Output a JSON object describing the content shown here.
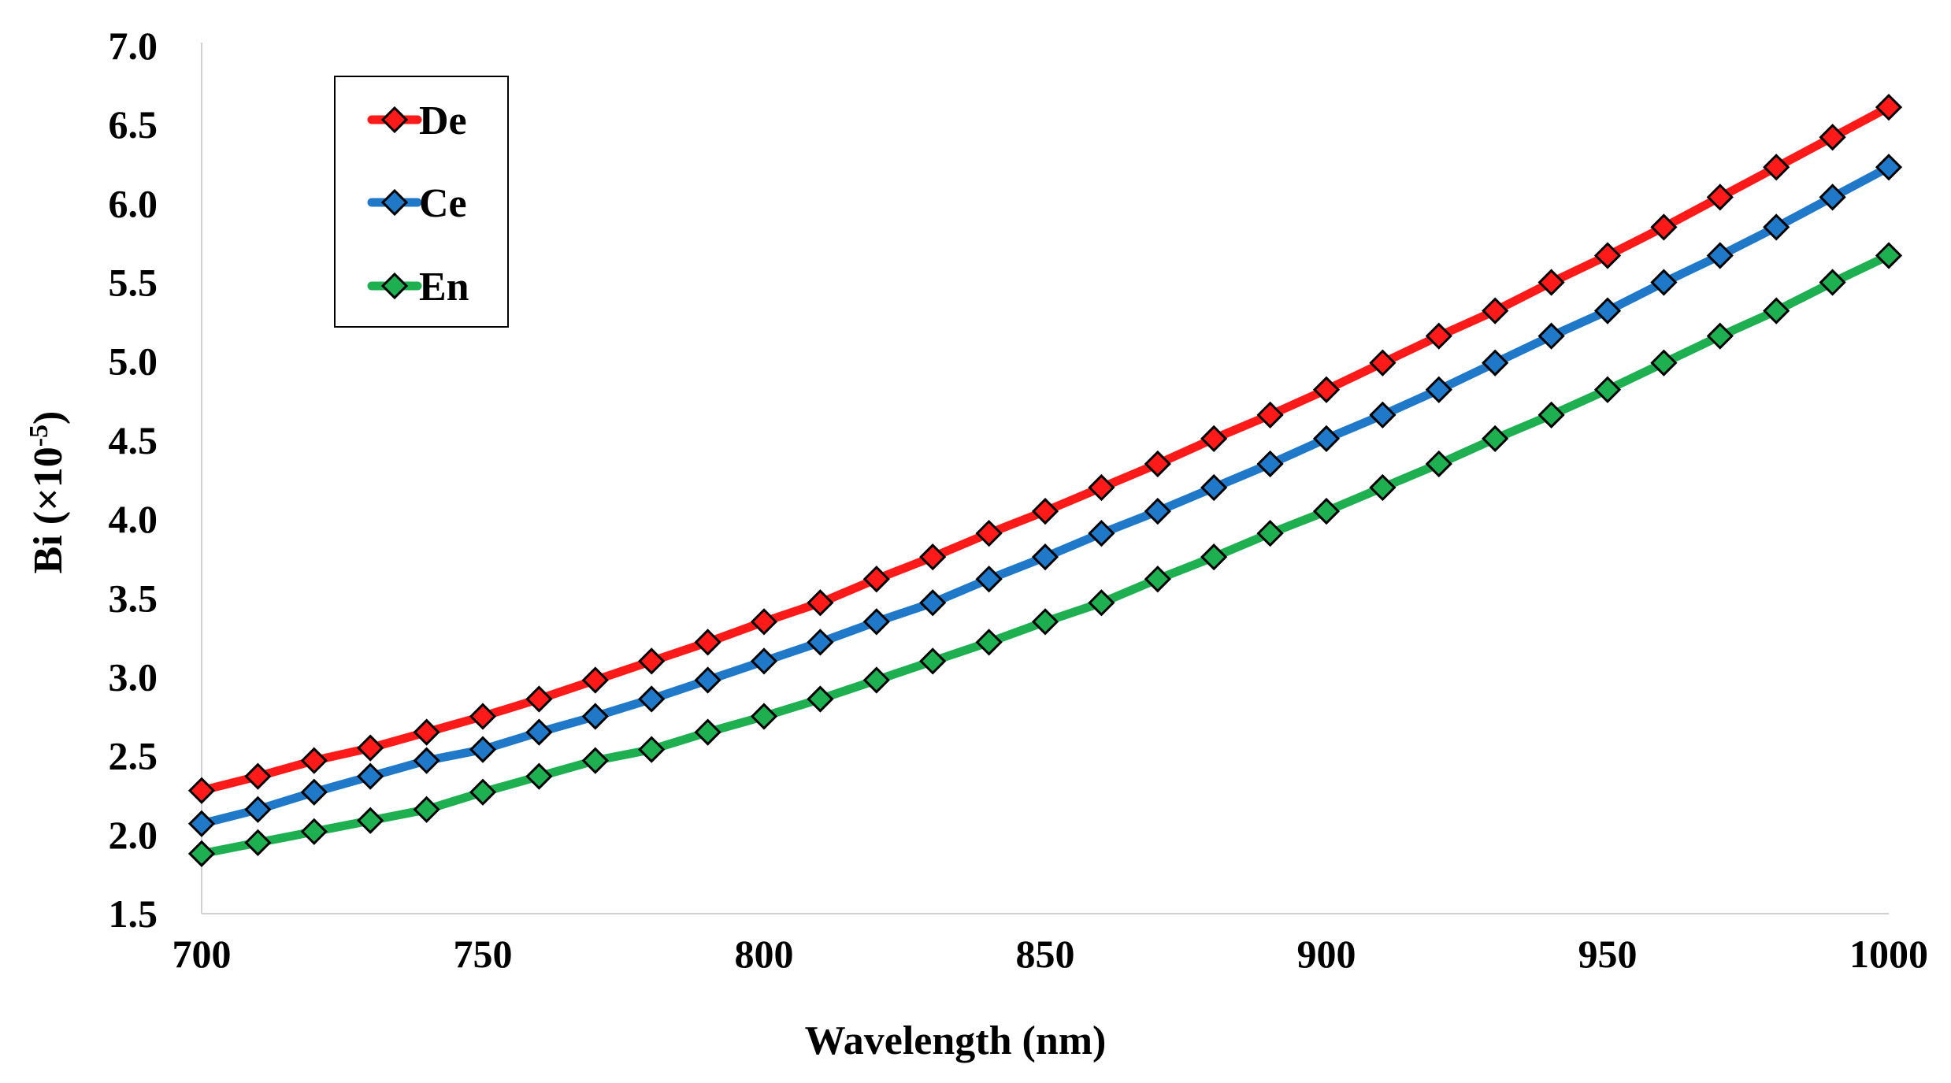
{
  "chart_data": {
    "type": "line",
    "title": "",
    "xlabel": "Wavelength (nm)",
    "ylabel": {
      "main": "Bi (×10",
      "sup": "-5",
      "close": ")"
    },
    "xlim": [
      700,
      1000
    ],
    "ylim": [
      1.5,
      7.0
    ],
    "xticks": [
      "700",
      "750",
      "800",
      "850",
      "900",
      "950",
      "1000"
    ],
    "yticks": [
      "1.5",
      "2.0",
      "2.5",
      "3.0",
      "3.5",
      "4.0",
      "4.5",
      "5.0",
      "5.5",
      "6.0",
      "6.5",
      "7.0"
    ],
    "grid": false,
    "legend_position": "top-left",
    "x": [
      700,
      710,
      720,
      730,
      740,
      750,
      760,
      770,
      780,
      790,
      800,
      810,
      820,
      830,
      840,
      850,
      860,
      870,
      880,
      890,
      900,
      910,
      920,
      930,
      940,
      950,
      960,
      970,
      980,
      990,
      1000
    ],
    "series": [
      {
        "name": "De",
        "color": "#ff1a1a",
        "values": [
          2.28,
          2.37,
          2.47,
          2.55,
          2.65,
          2.75,
          2.86,
          2.98,
          3.1,
          3.22,
          3.35,
          3.47,
          3.62,
          3.76,
          3.91,
          4.05,
          4.2,
          4.35,
          4.51,
          4.66,
          4.82,
          4.99,
          5.16,
          5.32,
          5.5,
          5.67,
          5.85,
          6.04,
          6.23,
          6.42,
          6.61
        ]
      },
      {
        "name": "Ce",
        "color": "#1f78c8",
        "values": [
          2.07,
          2.16,
          2.27,
          2.37,
          2.47,
          2.54,
          2.65,
          2.75,
          2.86,
          2.98,
          3.1,
          3.22,
          3.35,
          3.47,
          3.62,
          3.76,
          3.91,
          4.05,
          4.2,
          4.35,
          4.51,
          4.66,
          4.82,
          4.99,
          5.16,
          5.32,
          5.5,
          5.67,
          5.85,
          6.04,
          6.23
        ]
      },
      {
        "name": "En",
        "color": "#1eb050",
        "values": [
          1.88,
          1.95,
          2.02,
          2.09,
          2.16,
          2.27,
          2.37,
          2.47,
          2.54,
          2.65,
          2.75,
          2.86,
          2.98,
          3.1,
          3.22,
          3.35,
          3.47,
          3.62,
          3.76,
          3.91,
          4.05,
          4.2,
          4.35,
          4.51,
          4.66,
          4.82,
          4.99,
          5.16,
          5.32,
          5.5,
          5.67
        ]
      }
    ]
  }
}
